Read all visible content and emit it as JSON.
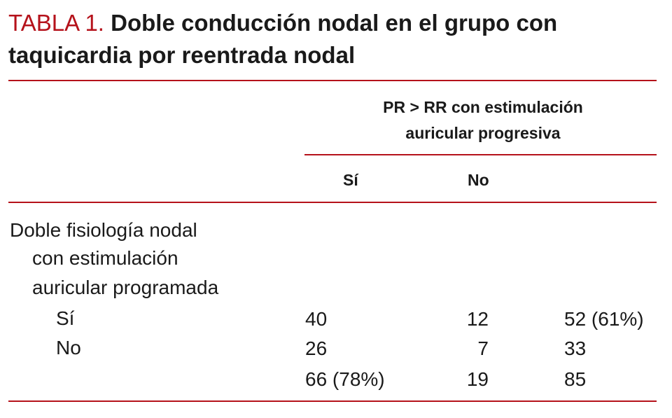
{
  "title": {
    "label": "TABLA 1.",
    "text": "Doble conducción nodal en el grupo con taquicardia por reentrada nodal"
  },
  "table": {
    "group_header": [
      "PR > RR con estimulación",
      "auricular progresiva"
    ],
    "columns": [
      "Sí",
      "No"
    ],
    "row_header": [
      "Doble fisiología nodal",
      "con estimulación",
      "auricular programada"
    ],
    "rows": [
      {
        "label": "Sí",
        "si": "40",
        "no": "12",
        "total": "52 (61%)"
      },
      {
        "label": "No",
        "si": "26",
        "no": "7",
        "total": "33"
      },
      {
        "label": "",
        "si": "66 (78%)",
        "no": "19",
        "total": "85"
      }
    ]
  },
  "colors": {
    "accent": "#b5121b",
    "text": "#1a1a1a"
  }
}
